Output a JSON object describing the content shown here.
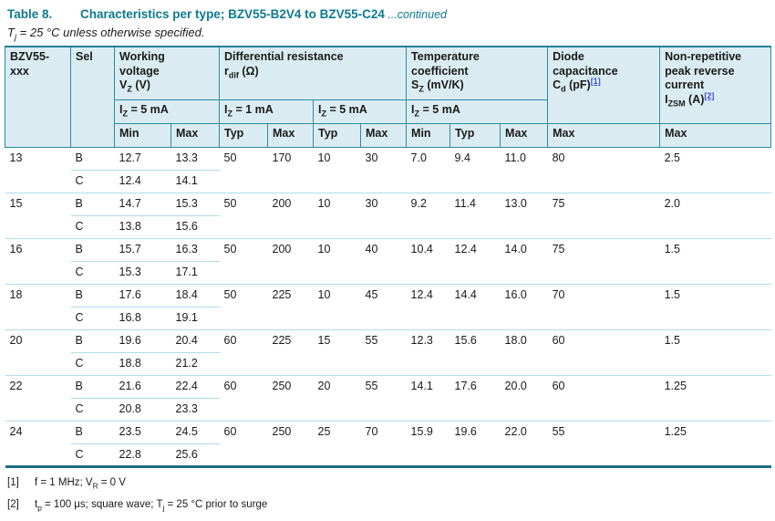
{
  "colors": {
    "title_teal": "#0d7a8f",
    "header_bg": "#daecf2",
    "header_border": "#2b8ba1",
    "table_top_border": "#257f95",
    "table_bottom_border": "#1a6f85",
    "row_separator": "#aeddea",
    "footnote_link_blue": "#3c50d6"
  },
  "title": {
    "label": "Table 8.",
    "main": "Characteristics per type; BZV55-B2V4 to BZV55-C24",
    "continued": " ...continued"
  },
  "subtitle": [
    {
      "t": "T"
    },
    {
      "sub": "j"
    },
    {
      "t": " = 25 °C unless otherwise specified."
    }
  ],
  "table": {
    "header": {
      "type_col": [
        {
          "t": "BZV55-"
        },
        {
          "br": true
        },
        {
          "t": "xxx"
        }
      ],
      "sel_col": "Sel",
      "working_voltage": [
        {
          "t": "Working"
        },
        {
          "br": true
        },
        {
          "t": "voltage"
        },
        {
          "br": true
        },
        {
          "t": "V"
        },
        {
          "sub": "Z"
        },
        {
          "t": " (V)"
        }
      ],
      "diff_resistance": [
        {
          "t": "Differential resistance"
        },
        {
          "br": true
        },
        {
          "t": "r"
        },
        {
          "sub": "dif"
        },
        {
          "t": " (Ω)"
        }
      ],
      "temp_coeff": [
        {
          "t": "Temperature"
        },
        {
          "br": true
        },
        {
          "t": "coefficient"
        },
        {
          "br": true
        },
        {
          "t": "S"
        },
        {
          "sub": "Z"
        },
        {
          "t": " (mV/K)"
        }
      ],
      "diode_cap": [
        {
          "t": "Diode"
        },
        {
          "br": true
        },
        {
          "t": "capacitance"
        },
        {
          "br": true
        },
        {
          "t": "C"
        },
        {
          "sub": "d"
        },
        {
          "t": " (pF)"
        },
        {
          "sup": "[1]"
        }
      ],
      "izsm": [
        {
          "t": "Non-repetitive"
        },
        {
          "br": true
        },
        {
          "t": "peak reverse"
        },
        {
          "br": true
        },
        {
          "t": "current"
        },
        {
          "br": true
        },
        {
          "t": "I"
        },
        {
          "sub": "ZSM"
        },
        {
          "t": " (A)"
        },
        {
          "sup": "[2]"
        }
      ],
      "cond_iz5_wv": [
        {
          "t": "I"
        },
        {
          "sub": "Z"
        },
        {
          "t": " = 5 mA"
        }
      ],
      "cond_iz1_rdif": [
        {
          "t": "I"
        },
        {
          "sub": "Z"
        },
        {
          "t": " = 1 mA"
        }
      ],
      "cond_iz5_rdif": [
        {
          "t": "I"
        },
        {
          "sub": "Z"
        },
        {
          "t": " = 5 mA"
        }
      ],
      "cond_iz5_sz": [
        {
          "t": "I"
        },
        {
          "sub": "Z"
        },
        {
          "t": " = 5 mA"
        }
      ],
      "sub_cols": [
        "Min",
        "Max",
        "Typ",
        "Max",
        "Typ",
        "Max",
        "Min",
        "Typ",
        "Max",
        "Max",
        "Max"
      ]
    },
    "groups": [
      {
        "type": "13",
        "b": [
          "B",
          "12.7",
          "13.3",
          "50",
          "170",
          "10",
          "30",
          "7.0",
          "9.4",
          "11.0",
          "80",
          "2.5"
        ],
        "c": [
          "C",
          "12.4",
          "14.1"
        ]
      },
      {
        "type": "15",
        "b": [
          "B",
          "14.7",
          "15.3",
          "50",
          "200",
          "10",
          "30",
          "9.2",
          "11.4",
          "13.0",
          "75",
          "2.0"
        ],
        "c": [
          "C",
          "13.8",
          "15.6"
        ]
      },
      {
        "type": "16",
        "b": [
          "B",
          "15.7",
          "16.3",
          "50",
          "200",
          "10",
          "40",
          "10.4",
          "12.4",
          "14.0",
          "75",
          "1.5"
        ],
        "c": [
          "C",
          "15.3",
          "17.1"
        ]
      },
      {
        "type": "18",
        "b": [
          "B",
          "17.6",
          "18.4",
          "50",
          "225",
          "10",
          "45",
          "12.4",
          "14.4",
          "16.0",
          "70",
          "1.5"
        ],
        "c": [
          "C",
          "16.8",
          "19.1"
        ]
      },
      {
        "type": "20",
        "b": [
          "B",
          "19.6",
          "20.4",
          "60",
          "225",
          "15",
          "55",
          "12.3",
          "15.6",
          "18.0",
          "60",
          "1.5"
        ],
        "c": [
          "C",
          "18.8",
          "21.2"
        ]
      },
      {
        "type": "22",
        "b": [
          "B",
          "21.6",
          "22.4",
          "60",
          "250",
          "20",
          "55",
          "14.1",
          "17.6",
          "20.0",
          "60",
          "1.25"
        ],
        "c": [
          "C",
          "20.8",
          "23.3"
        ]
      },
      {
        "type": "24",
        "b": [
          "B",
          "23.5",
          "24.5",
          "60",
          "250",
          "25",
          "70",
          "15.9",
          "19.6",
          "22.0",
          "55",
          "1.25"
        ],
        "c": [
          "C",
          "22.8",
          "25.6"
        ]
      }
    ]
  },
  "footnotes": [
    {
      "ref": "[1]",
      "segs": [
        {
          "t": "f = 1 MHz; V"
        },
        {
          "sub": "R"
        },
        {
          "t": " = 0 V"
        }
      ]
    },
    {
      "ref": "[2]",
      "segs": [
        {
          "t": "t"
        },
        {
          "sub": "p"
        },
        {
          "t": " = 100 μs; square wave; T"
        },
        {
          "sub": "j"
        },
        {
          "t": " = 25 °C prior to surge"
        }
      ]
    }
  ]
}
